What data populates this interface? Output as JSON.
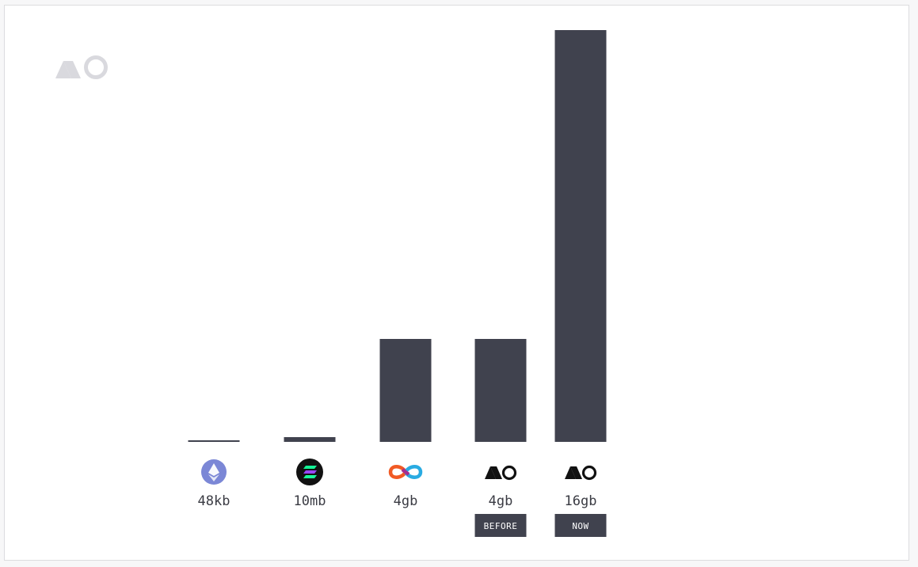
{
  "logo_text": "AO",
  "colors": {
    "bar": "#40424e",
    "background": "#ffffff",
    "watermark": "#d9d9de",
    "eth": "#7b87d6",
    "sol_bg": "#111111",
    "icp_a": "#f15a24",
    "icp_b": "#29abe2",
    "icp_c": "#a52d8f",
    "label": "#3a3b43",
    "ao_logo": "#111111"
  },
  "chart_data": {
    "type": "bar",
    "categories": [
      "Ethereum",
      "Solana",
      "Internet Computer",
      "AO",
      "AO"
    ],
    "category_icons": [
      "ethereum-icon",
      "solana-icon",
      "internet-computer-icon",
      "ao-logo-icon",
      "ao-logo-icon"
    ],
    "value_labels": [
      "48kb",
      "10mb",
      "4gb",
      "4gb",
      "16gb"
    ],
    "values": [
      4.8e-05,
      0.01,
      4,
      4,
      16
    ],
    "badges": [
      "",
      "",
      "",
      "BEFORE",
      "NOW"
    ],
    "ylim": [
      0,
      16
    ],
    "grid": false
  }
}
